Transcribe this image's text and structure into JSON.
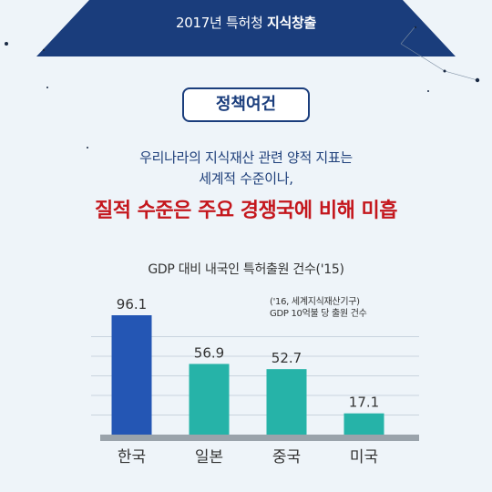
{
  "banner": {
    "year_org": "2017년 특허청",
    "title": "지식창출"
  },
  "section_label": "정책여건",
  "subtitle_line1": "우리나라의 지식재산 관련 양적 지표는",
  "subtitle_line2": "세계적 수준이나,",
  "headline": "질적 수준은 주요 경쟁국에 비해 미흡",
  "colors": {
    "navy": "#1a3d7c",
    "red": "#c4161c",
    "korea_bar": "#2456b4",
    "other_bar": "#26b3a8",
    "baseline": "#9aa3ab"
  },
  "chart_data": {
    "type": "bar",
    "title": "GDP 대비 내국인 특허출원 건수('15)",
    "note_line1": "('16, 세계지식재산기구)",
    "note_line2": "GDP 10억불 당 출원 건수",
    "categories": [
      "한국",
      "일본",
      "중국",
      "미국"
    ],
    "values": [
      96.1,
      56.9,
      52.7,
      17.1
    ],
    "value_labels": [
      "96.1",
      "56.9",
      "52.7",
      "17.1"
    ],
    "ylim": [
      0,
      100
    ],
    "grid": true,
    "highlight_index": 0
  }
}
